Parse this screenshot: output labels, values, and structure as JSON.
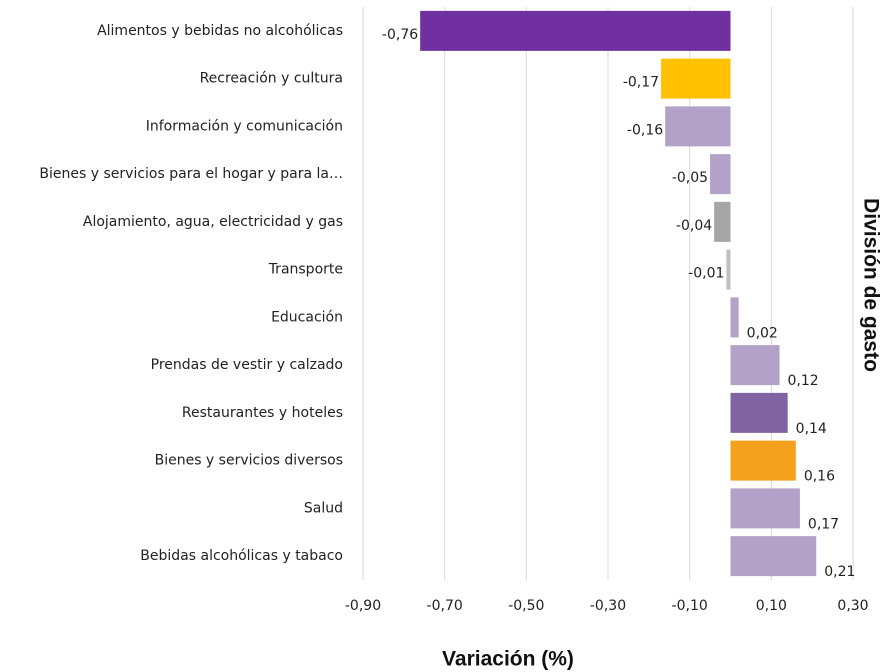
{
  "chart_data": {
    "type": "hbar",
    "xlabel": "Variación (%)",
    "ylabel": "División de gasto",
    "categories": [
      "Alimentos y bebidas no alcohólicas",
      "Recreación y cultura",
      "Información y comunicación",
      "Bienes y servicios para el hogar y para la…",
      "Alojamiento, agua, electricidad y gas",
      "Transporte",
      "Educación",
      "Prendas de vestir y calzado",
      "Restaurantes y hoteles",
      "Bienes y servicios diversos",
      "Salud",
      "Bebidas alcohólicas y tabaco"
    ],
    "values": [
      -0.76,
      -0.17,
      -0.16,
      -0.05,
      -0.04,
      -0.01,
      0.02,
      0.12,
      0.14,
      0.16,
      0.17,
      0.21
    ],
    "value_labels": [
      "-0,76",
      "-0,17",
      "-0,16",
      "-0,05",
      "-0,04",
      "-0,01",
      "0,02",
      "0,12",
      "0,14",
      "0,16",
      "0,17",
      "0,21"
    ],
    "colors": [
      "#7030a0",
      "#ffc000",
      "#b3a2c7",
      "#b3a2c7",
      "#a6a6a6",
      "#bfbfbf",
      "#b3a2c7",
      "#b3a2c7",
      "#8064a2",
      "#f4a21e",
      "#b3a2c7",
      "#b3a2c7"
    ],
    "xlim": [
      -0.9,
      0.3
    ],
    "xticks": [
      {
        "value": -0.9,
        "label": "-0,90"
      },
      {
        "value": -0.7,
        "label": "-0,70"
      },
      {
        "value": -0.5,
        "label": "-0,50"
      },
      {
        "value": -0.3,
        "label": "-0,30"
      },
      {
        "value": -0.1,
        "label": "-0,10"
      },
      {
        "value": 0.1,
        "label": "0,10"
      },
      {
        "value": 0.3,
        "label": "0,30"
      }
    ],
    "grid": true
  }
}
